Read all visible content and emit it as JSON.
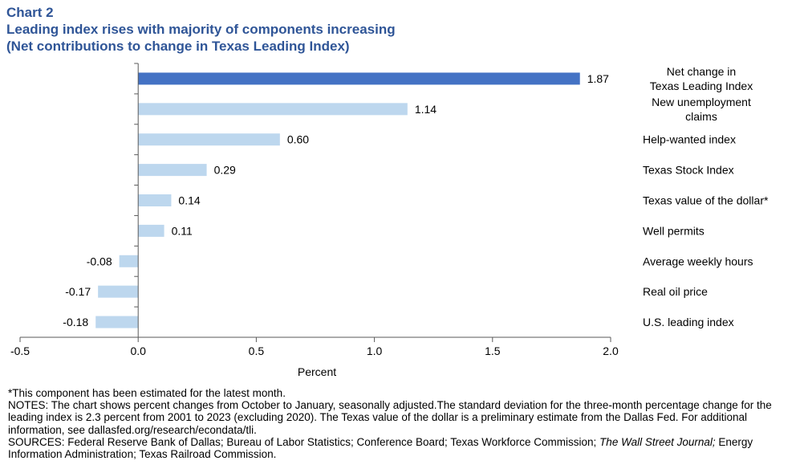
{
  "header": {
    "chart_label": "Chart 2",
    "title": "Leading index rises with majority of components increasing",
    "subtitle": "(Net contributions to change in Texas Leading Index)"
  },
  "chart_data": {
    "type": "bar",
    "orientation": "horizontal",
    "categories": [
      [
        "Net change in",
        "Texas Leading Index"
      ],
      [
        "New unemployment",
        "claims"
      ],
      [
        "Help-wanted index"
      ],
      [
        "Texas Stock Index"
      ],
      [
        "Texas value of the dollar*"
      ],
      [
        "Well permits"
      ],
      [
        "Average weekly hours"
      ],
      [
        "Real oil price"
      ],
      [
        "U.S. leading index"
      ]
    ],
    "values": [
      1.87,
      1.14,
      0.6,
      0.29,
      0.14,
      0.11,
      -0.08,
      -0.17,
      -0.18
    ],
    "value_labels": [
      "1.87",
      "1.14",
      "0.60",
      "0.29",
      "0.14",
      "0.11",
      "-0.08",
      "-0.17",
      "-0.18"
    ],
    "xlabel": "Percent",
    "xlim": [
      -0.5,
      2.0
    ],
    "xticks": [
      "-0.5",
      "0.0",
      "0.5",
      "1.0",
      "1.5",
      "2.0"
    ],
    "xtick_values": [
      -0.5,
      0,
      0.5,
      1.0,
      1.5,
      2.0
    ],
    "grid": false,
    "colors": {
      "highlight": "#4472C4",
      "default": "#BDD7EE",
      "axis": "#595959"
    }
  },
  "footnotes": {
    "star": "*This component has been estimated for the latest month.",
    "notes": "NOTES: The chart shows percent changes from October to January, seasonally adjusted.The standard deviation for the three-month percentage change for the leading index is 2.3 percent from 2001 to 2023 (excluding 2020). The Texas value of the dollar is a preliminary estimate from the Dallas Fed. For additional information, see dallasfed.org/research/econdata/tli.",
    "sources_prefix": "SOURCES: Federal Reserve Bank of Dallas; Bureau of Labor Statistics; Conference Board; Texas Workforce Commission; ",
    "sources_italic": "The Wall Street Journal;",
    "sources_suffix": " Energy Information Administration; Texas Railroad Commission."
  }
}
